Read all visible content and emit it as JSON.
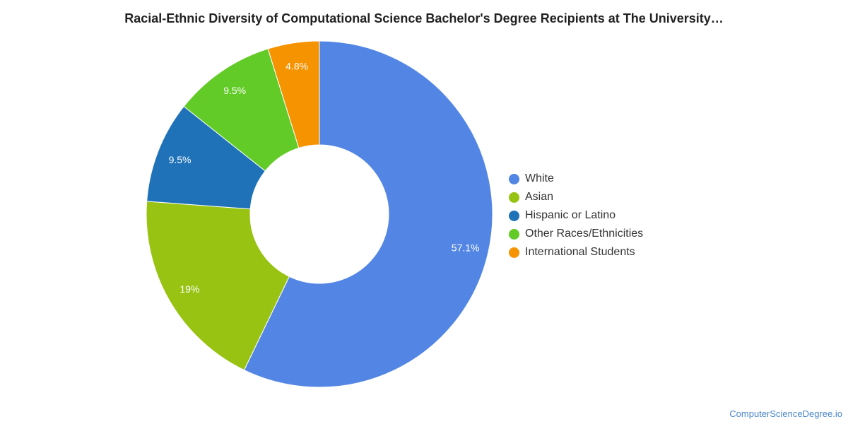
{
  "chart_data": {
    "type": "pie",
    "variant": "donut",
    "title": "Racial-Ethnic Diversity of Computational Science Bachelor's Degree Recipients at The University…",
    "categories": [
      "White",
      "Asian",
      "Hispanic or Latino",
      "Other Races/Ethnicities",
      "International Students"
    ],
    "values": [
      57.1,
      19,
      9.5,
      9.5,
      4.8
    ],
    "labels": [
      "57.1%",
      "19%",
      "9.5%",
      "9.5%",
      "4.8%"
    ],
    "colors": [
      "#5386e4",
      "#98c313",
      "#1f72b8",
      "#62cb28",
      "#f69300"
    ],
    "legend_position": "right"
  },
  "footer": {
    "source": "ComputerScienceDegree.io"
  }
}
